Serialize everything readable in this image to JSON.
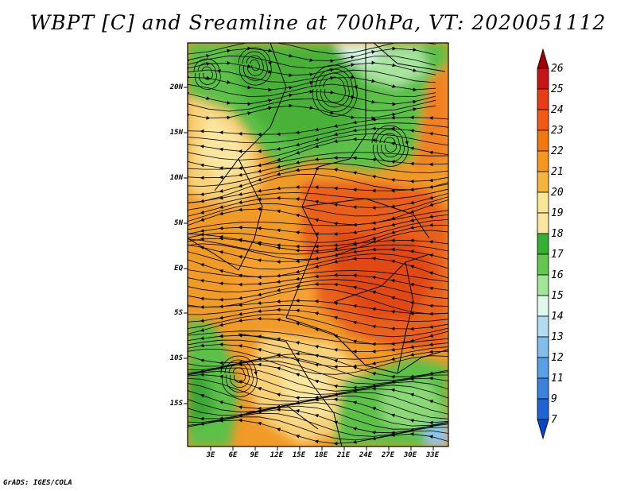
{
  "title": "WBPT [C] and Sreamline at 700hPa, VT: 2020051112",
  "credit": "GrADS: IGES/COLA",
  "map": {
    "variable": "Wet-bulb potential temperature",
    "units": "C",
    "level": "700hPa",
    "valid_time": "2020051112",
    "lat_ticks": [
      "20N",
      "15N",
      "10N",
      "5N",
      "EQ",
      "5S",
      "10S",
      "15S"
    ],
    "lon_ticks": [
      "3E",
      "6E",
      "9E",
      "12E",
      "15E",
      "18E",
      "21E",
      "24E",
      "27E",
      "30E",
      "33E"
    ]
  },
  "colorbar": {
    "labels": [
      "26",
      "25",
      "24",
      "23",
      "22",
      "21",
      "20",
      "19",
      "18",
      "17",
      "16",
      "15",
      "14",
      "13",
      "12",
      "11",
      "9",
      "7"
    ],
    "colors": [
      "#a00000",
      "#c81414",
      "#e83c14",
      "#f05a14",
      "#f0780f",
      "#f5961e",
      "#f5b43c",
      "#fae696",
      "#fae6a0",
      "#36b034",
      "#64c850",
      "#a0e696",
      "#e0f8ec",
      "#b4dcf0",
      "#82beec",
      "#5aa0e6",
      "#3c82dc",
      "#1e64d2",
      "#0a46c8"
    ]
  }
}
